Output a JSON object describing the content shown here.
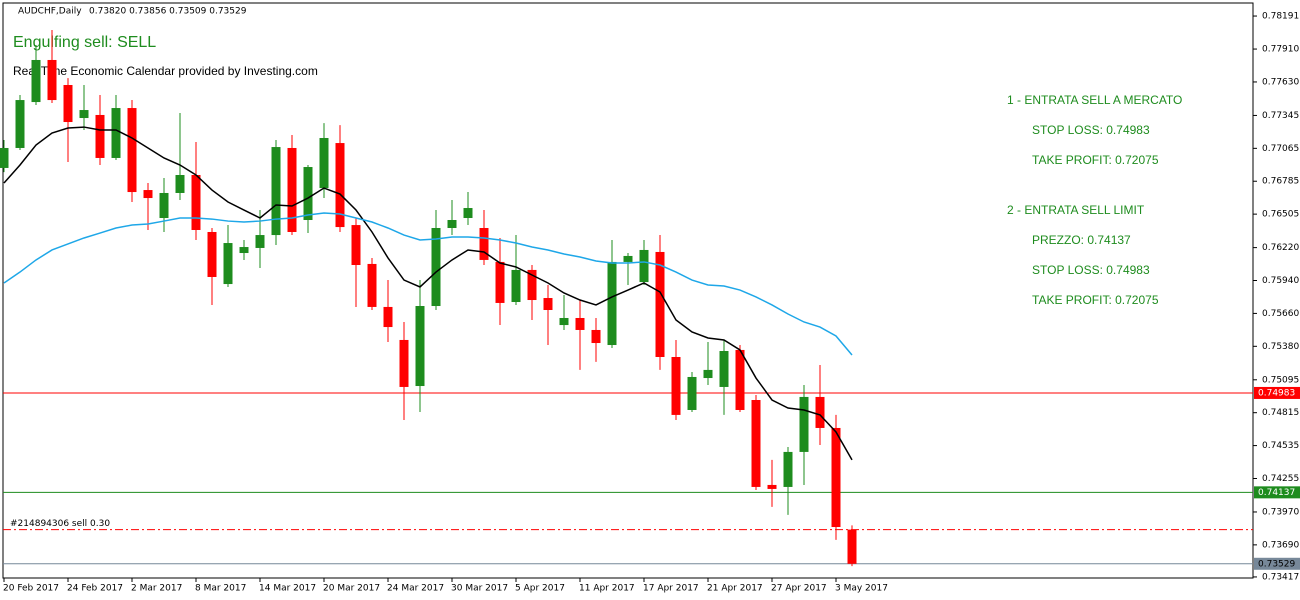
{
  "chart_data": {
    "type": "candlestick",
    "header": {
      "symbol": "AUDCHF,Daily",
      "quote": "0.73820 0.73856 0.73509 0.73529"
    },
    "signal": "Engulfing sell: SELL",
    "calendar_note": "Real Time Economic Calendar provided by Investing.com",
    "annotations": [
      "1 - ENTRATA SELL A MERCATO",
      "STOP LOSS: 0.74983",
      "TAKE PROFIT: 0.72075",
      "2 - ENTRATA SELL LIMIT",
      "PREZZO: 0.74137",
      "STOP LOSS: 0.74983",
      "TAKE PROFIT: 0.72075"
    ],
    "annotation_color": "#1e8c1e",
    "categories": [
      "20 Feb 2017",
      null,
      null,
      null,
      "24 Feb 2017",
      null,
      null,
      null,
      "2 Mar 2017",
      null,
      null,
      null,
      "8 Mar 2017",
      null,
      null,
      null,
      "14 Mar 2017",
      null,
      null,
      null,
      "20 Mar 2017",
      null,
      null,
      null,
      "24 Mar 2017",
      null,
      null,
      null,
      "30 Mar 2017",
      null,
      null,
      null,
      "5 Apr 2017",
      null,
      null,
      null,
      "11 Apr 2017",
      null,
      null,
      null,
      "17 Apr 2017",
      null,
      null,
      null,
      "21 Apr 2017",
      null,
      null,
      null,
      "27 Apr 2017",
      null,
      null,
      null,
      "3 May 2017",
      null
    ],
    "candles": {
      "up_color": "#1e8c1e",
      "down_color": "#ff0000",
      "open": [
        0.76898,
        0.77068,
        0.77459,
        0.77817,
        0.77604,
        0.77323,
        0.77349,
        0.76983,
        0.77408,
        0.7671,
        0.76472,
        0.76685,
        0.76838,
        0.76353,
        0.7591,
        0.76174,
        0.76217,
        0.76327,
        0.77068,
        0.76455,
        0.76727,
        0.7711,
        0.76412,
        0.76081,
        0.75715,
        0.75434,
        0.75042,
        0.75723,
        0.76387,
        0.76472,
        0.76387,
        0.76098,
        0.75757,
        0.7603,
        0.75791,
        0.75561,
        0.75621,
        0.75519,
        0.75391,
        0.76098,
        0.75927,
        0.76183,
        0.75289,
        0.74838,
        0.7511,
        0.75034,
        0.75349,
        0.74923,
        0.742,
        0.74183,
        0.74481,
        0.74949,
        0.74685,
        0.7382
      ],
      "high": [
        0.77136,
        0.77519,
        0.77944,
        0.78072,
        0.77663,
        0.77604,
        0.77519,
        0.77519,
        0.77476,
        0.7677,
        0.76812,
        0.77366,
        0.77119,
        0.76387,
        0.76412,
        0.76285,
        0.7654,
        0.77136,
        0.77178,
        0.76923,
        0.7728,
        0.77263,
        0.76472,
        0.76132,
        0.75944,
        0.75587,
        0.75944,
        0.7654,
        0.76625,
        0.76693,
        0.7654,
        0.76302,
        0.76327,
        0.76072,
        0.75902,
        0.75817,
        0.75774,
        0.75621,
        0.76285,
        0.76174,
        0.76285,
        0.76327,
        0.75434,
        0.75161,
        0.75417,
        0.75434,
        0.75391,
        0.74966,
        0.74413,
        0.74523,
        0.75051,
        0.75221,
        0.74796,
        0.73856
      ],
      "low": [
        0.76863,
        0.77051,
        0.77434,
        0.77451,
        0.76949,
        0.77221,
        0.76923,
        0.76966,
        0.76608,
        0.7637,
        0.76353,
        0.76625,
        0.76285,
        0.75732,
        0.75885,
        0.76115,
        0.76047,
        0.76242,
        0.76327,
        0.76344,
        0.76642,
        0.76353,
        0.75715,
        0.75689,
        0.75417,
        0.74753,
        0.74821,
        0.75689,
        0.76327,
        0.76412,
        0.76072,
        0.75561,
        0.75732,
        0.75604,
        0.75391,
        0.75519,
        0.75179,
        0.75247,
        0.75366,
        0.75902,
        0.75902,
        0.75179,
        0.74753,
        0.74821,
        0.75051,
        0.74796,
        0.74821,
        0.74157,
        0.74013,
        0.73945,
        0.742,
        0.7454,
        0.73732,
        0.73509
      ],
      "close": [
        0.77068,
        0.77476,
        0.77817,
        0.77476,
        0.77289,
        0.77391,
        0.76983,
        0.77408,
        0.76693,
        0.76642,
        0.76685,
        0.76838,
        0.7637,
        0.7597,
        0.76259,
        0.76225,
        0.76327,
        0.77076,
        0.76353,
        0.76906,
        0.77153,
        0.76395,
        0.76072,
        0.75715,
        0.75544,
        0.75034,
        0.75723,
        0.76387,
        0.76455,
        0.76557,
        0.76115,
        0.75749,
        0.7603,
        0.75774,
        0.75689,
        0.75621,
        0.75519,
        0.75408,
        0.76098,
        0.76149,
        0.762,
        0.75289,
        0.74796,
        0.75119,
        0.75179,
        0.7534,
        0.74838,
        0.74183,
        0.74166,
        0.74481,
        0.74949,
        0.74685,
        0.73842,
        0.73529
      ]
    },
    "series": [
      {
        "color": "#000000",
        "values": [
          0.7677,
          0.76923,
          0.77093,
          0.77195,
          0.77238,
          0.77246,
          0.77221,
          0.77221,
          0.77153,
          0.77068,
          0.76983,
          0.76923,
          0.76838,
          0.7671,
          0.76608,
          0.7654,
          0.76472,
          0.76583,
          0.76574,
          0.76642,
          0.76727,
          0.76676,
          0.7654,
          0.76353,
          0.76132,
          0.75944,
          0.75885,
          0.76012,
          0.76115,
          0.762,
          0.76183,
          0.76089,
          0.76055,
          0.75987,
          0.75919,
          0.75834,
          0.75774,
          0.75732,
          0.758,
          0.75859,
          0.75919,
          0.75842,
          0.75604,
          0.75502,
          0.75451,
          0.75434,
          0.75349,
          0.7511,
          0.74923,
          0.74855,
          0.74838,
          0.74796,
          0.74651,
          0.74413
        ]
      },
      {
        "color": "#1ea7e8",
        "values": [
          0.75919,
          0.76012,
          0.76115,
          0.762,
          0.76251,
          0.76302,
          0.76344,
          0.76387,
          0.76412,
          0.76421,
          0.76446,
          0.76472,
          0.76472,
          0.76463,
          0.76446,
          0.76438,
          0.76446,
          0.76463,
          0.76472,
          0.76498,
          0.76515,
          0.76506,
          0.76472,
          0.76438,
          0.76387,
          0.76327,
          0.76285,
          0.76293,
          0.7631,
          0.7631,
          0.76302,
          0.76285,
          0.76259,
          0.76225,
          0.762,
          0.76166,
          0.7614,
          0.76106,
          0.76089,
          0.76089,
          0.76098,
          0.76072,
          0.76012,
          0.75944,
          0.75902,
          0.75893,
          0.75859,
          0.758,
          0.75732,
          0.75655,
          0.75587,
          0.75544,
          0.75468,
          0.75306
        ]
      }
    ],
    "hlines": [
      {
        "value": 0.74983,
        "color": "#ff0000",
        "text_color": "#ffffff"
      },
      {
        "value": 0.74137,
        "color": "#1e8c1e",
        "text_color": "#ffffff"
      },
      {
        "value": 0.73529,
        "color": "#778899",
        "text_color": "#000000"
      }
    ],
    "order": {
      "label": "#214894306 sell 0.30",
      "value": 0.7382,
      "color": "#ff0000"
    },
    "ylim": [
      0.73408,
      0.78302
    ],
    "yticks": [
      0.78191,
      {
        "value": 0.7791,
        "label": "0.77910"
      },
      {
        "value": 0.7763,
        "label": "0.77630"
      },
      0.77345,
      0.77065,
      0.76785,
      0.76505,
      {
        "value": 0.7622,
        "label": "0.76220"
      },
      {
        "value": 0.7594,
        "label": "0.75940"
      },
      {
        "value": 0.7566,
        "label": "0.75660"
      },
      {
        "value": 0.7538,
        "label": "0.75380"
      },
      0.75095,
      0.74815,
      0.74535,
      0.74255,
      {
        "value": 0.7397,
        "label": "0.73970"
      },
      {
        "value": 0.7369,
        "label": "0.73690"
      },
      0.73417
    ]
  }
}
